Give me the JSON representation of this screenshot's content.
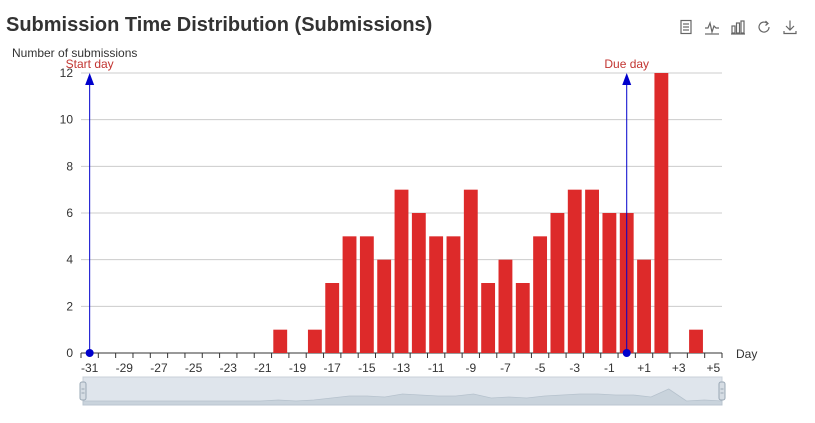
{
  "chart_data": {
    "type": "bar",
    "title": "Submission Time Distribution (Submissions)",
    "ylabel": "Number of submissions",
    "xlabel": "Day",
    "ylim": [
      0,
      12
    ],
    "yticks": [
      "0",
      "2",
      "4",
      "6",
      "8",
      "10",
      "12"
    ],
    "categories": [
      "-31",
      "-30",
      "-29",
      "-28",
      "-27",
      "-26",
      "-25",
      "-24",
      "-23",
      "-22",
      "-21",
      "-20",
      "-19",
      "-18",
      "-17",
      "-16",
      "-15",
      "-14",
      "-13",
      "-12",
      "-11",
      "-10",
      "-9",
      "-8",
      "-7",
      "-6",
      "-5",
      "-4",
      "-3",
      "-2",
      "-1",
      "+0",
      "+1",
      "+2",
      "+3",
      "+4",
      "+5"
    ],
    "xtick_labels": [
      "-31",
      "-29",
      "-27",
      "-25",
      "-23",
      "-21",
      "-19",
      "-17",
      "-15",
      "-13",
      "-11",
      "-9",
      "-7",
      "-5",
      "-3",
      "-1",
      "+1",
      "+3",
      "+5"
    ],
    "values": [
      0,
      0,
      0,
      0,
      0,
      0,
      0,
      0,
      0,
      0,
      0,
      1,
      0,
      1,
      3,
      5,
      5,
      4,
      7,
      6,
      5,
      5,
      7,
      3,
      4,
      3,
      5,
      6,
      7,
      7,
      6,
      6,
      4,
      12,
      0,
      1,
      0
    ],
    "bar_color": "#dd2a2a",
    "marklines": [
      {
        "label": "Start day",
        "x": "-31",
        "color": "#0000cc"
      },
      {
        "label": "Due day",
        "x": "+0",
        "color": "#0000cc"
      }
    ],
    "grid": true,
    "data_zoom_slider": true
  },
  "toolbox": {
    "icons": [
      "data-view-icon",
      "line-chart-icon",
      "bar-chart-icon",
      "restore-icon",
      "save-image-icon"
    ]
  }
}
